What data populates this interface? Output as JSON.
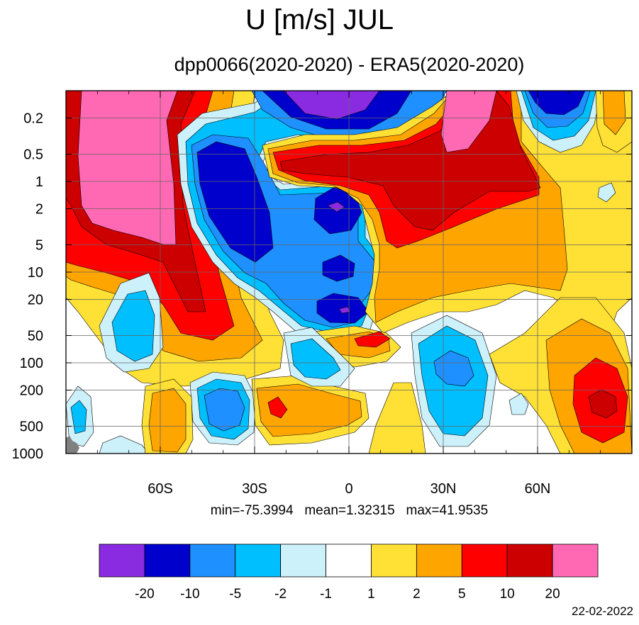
{
  "title": "U [m/s] JUL",
  "subtitle": "dpp0066(2020-2020) - ERA5(2020-2020)",
  "stats": {
    "min": "min=-75.3994",
    "mean": "mean=1.32315",
    "max": "max=41.9535"
  },
  "date": "22-02-2022",
  "chart_data": {
    "type": "heatmap",
    "title": "U [m/s] JUL",
    "subtitle": "dpp0066(2020-2020) - ERA5(2020-2020)",
    "variable": "U [m/s]",
    "xlabel": "",
    "ylabel": "",
    "x_axis": {
      "type": "latitude",
      "range": [
        -90,
        90
      ],
      "tick_values": [
        -60,
        -30,
        0,
        30,
        60
      ],
      "tick_labels": [
        "60S",
        "30S",
        "0",
        "30N",
        "60N"
      ]
    },
    "y_axis": {
      "type": "log",
      "units": "hPa",
      "reversed": true,
      "range": [
        0.1,
        1000
      ],
      "tick_values": [
        0.2,
        0.5,
        1,
        2,
        5,
        10,
        20,
        50,
        100,
        200,
        500,
        1000
      ],
      "tick_labels": [
        "0.2",
        "0.5",
        "1",
        "2",
        "5",
        "10",
        "20",
        "50",
        "100",
        "200",
        "500",
        "1000"
      ]
    },
    "grid": true,
    "colorbar": {
      "placement": "bottom",
      "levels": [
        -20,
        -10,
        -5,
        -2,
        -1,
        1,
        2,
        5,
        10,
        20
      ],
      "level_labels": [
        "-20",
        "-10",
        "-5",
        "-2",
        "-1",
        "1",
        "2",
        "5",
        "10",
        "20"
      ],
      "colors": [
        "#8a2be2",
        "#0000cd",
        "#1e90ff",
        "#00bfff",
        "#cdf1fb",
        "#ffffff",
        "#ffe135",
        "#ffa500",
        "#ff0000",
        "#cd0000",
        "#ff69b4"
      ]
    },
    "statistics": {
      "min": -75.3994,
      "mean": 1.32315,
      "max": 41.9535
    },
    "missing_color": "#808080"
  }
}
